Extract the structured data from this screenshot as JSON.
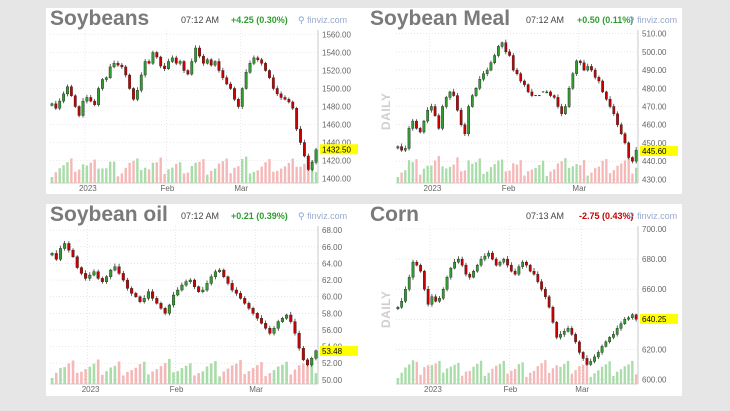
{
  "colors": {
    "up": "#2f9e2f",
    "down": "#c80000",
    "vol_up": "#a8dca8",
    "vol_down": "#f5b8b8",
    "grid": "#d8d8d8",
    "axis": "#666666",
    "last_bg": "#ffff00"
  },
  "watermark": "DAILY",
  "source_label": "finviz.com",
  "icon": "magnifier-icon",
  "chart_data": [
    {
      "type": "candlestick",
      "title": "Soybeans",
      "time": "07:12 AM",
      "change": "+4.25 (0.30%)",
      "change_dir": "up",
      "last": 1432.5,
      "last_label": "1432.50",
      "ylim": [
        1395,
        1565
      ],
      "ticks": [
        1400,
        1420,
        1440,
        1460,
        1480,
        1500,
        1520,
        1540,
        1560
      ],
      "tick_labels": [
        "1400.00",
        "1420.00",
        "1440.00",
        "1460.00",
        "1480.00",
        "1500.00",
        "1520.00",
        "1540.00",
        "1560.00"
      ],
      "x_labels": [
        {
          "label": "2023",
          "i": 9
        },
        {
          "label": "Feb",
          "i": 30
        },
        {
          "label": "Mar",
          "i": 49
        }
      ],
      "closes": [
        1483,
        1478,
        1486,
        1494,
        1502,
        1492,
        1480,
        1470,
        1486,
        1490,
        1486,
        1482,
        1500,
        1510,
        1512,
        1524,
        1528,
        1526,
        1524,
        1515,
        1500,
        1488,
        1498,
        1515,
        1530,
        1528,
        1540,
        1535,
        1525,
        1522,
        1530,
        1534,
        1528,
        1530,
        1520,
        1516,
        1530,
        1545,
        1536,
        1528,
        1532,
        1526,
        1530,
        1520,
        1512,
        1505,
        1500,
        1488,
        1480,
        1500,
        1518,
        1528,
        1534,
        1532,
        1528,
        1520,
        1512,
        1500,
        1494,
        1490,
        1488,
        1485,
        1478,
        1455,
        1440,
        1425,
        1410,
        1418,
        1432
      ]
    },
    {
      "type": "candlestick",
      "title": "Soybean Meal",
      "time": "07:12 AM",
      "change": "+0.50 (0.11%)",
      "change_dir": "up",
      "last": 445.6,
      "last_label": "445.60",
      "ylim": [
        428,
        512
      ],
      "ticks": [
        430,
        440,
        450,
        460,
        470,
        480,
        490,
        500,
        510
      ],
      "tick_labels": [
        "430.00",
        "440.00",
        "450.00",
        "460.00",
        "470.00",
        "480.00",
        "490.00",
        "500.00",
        "510.00"
      ],
      "x_labels": [
        {
          "label": "2023",
          "i": 9
        },
        {
          "label": "Feb",
          "i": 30
        },
        {
          "label": "Mar",
          "i": 49
        }
      ],
      "gaps": [
        37,
        38,
        39
      ],
      "closes": [
        448,
        446,
        447,
        458,
        462,
        458,
        456,
        462,
        468,
        470,
        465,
        458,
        470,
        475,
        478,
        476,
        468,
        460,
        455,
        470,
        476,
        480,
        485,
        488,
        490,
        494,
        498,
        503,
        505,
        500,
        498,
        490,
        488,
        484,
        482,
        478,
        476,
        476,
        476,
        478,
        478,
        476,
        475,
        470,
        466,
        470,
        480,
        488,
        495,
        494,
        490,
        492,
        490,
        486,
        484,
        478,
        474,
        470,
        466,
        460,
        455,
        450,
        442,
        440,
        446
      ]
    },
    {
      "type": "candlestick",
      "title": "Soybean oil",
      "time": "07:12 AM",
      "change": "+0.21 (0.39%)",
      "change_dir": "up",
      "last": 53.48,
      "last_label": "53.48",
      "ylim": [
        49.5,
        68.5
      ],
      "ticks": [
        50,
        52,
        54,
        56,
        58,
        60,
        62,
        64,
        66,
        68
      ],
      "tick_labels": [
        "50.00",
        "52.00",
        "54.00",
        "56.00",
        "58.00",
        "60.00",
        "62.00",
        "64.00",
        "66.00",
        "68.00"
      ],
      "x_labels": [
        {
          "label": "2023",
          "i": 9
        },
        {
          "label": "Feb",
          "i": 30
        },
        {
          "label": "Mar",
          "i": 49
        }
      ],
      "closes": [
        65.2,
        64.5,
        65.8,
        66.4,
        65.6,
        64.8,
        63.5,
        62.8,
        62.2,
        62.6,
        63.0,
        62.2,
        61.8,
        62.4,
        63.2,
        63.6,
        62.8,
        62.0,
        61.0,
        60.4,
        60.0,
        59.4,
        59.8,
        60.6,
        59.8,
        59.2,
        58.6,
        58.0,
        59.0,
        60.2,
        60.8,
        61.4,
        61.8,
        62.0,
        61.2,
        60.6,
        60.8,
        61.6,
        62.4,
        63.0,
        63.2,
        62.4,
        61.6,
        60.8,
        60.4,
        59.8,
        59.2,
        58.6,
        58.0,
        57.4,
        56.8,
        56.2,
        55.6,
        56.2,
        57.0,
        57.4,
        57.8,
        57.0,
        55.6,
        53.8,
        52.4,
        51.8,
        52.6,
        53.5
      ]
    },
    {
      "type": "candlestick",
      "title": "Corn",
      "time": "07:13 AM",
      "change": "-2.75 (0.43%)",
      "change_dir": "down",
      "last": 640.25,
      "last_label": "640.25",
      "ylim": [
        597,
        702
      ],
      "ticks": [
        600,
        620,
        640,
        660,
        680,
        700
      ],
      "tick_labels": [
        "600.00",
        "620.00",
        "640.00",
        "660.00",
        "680.00",
        "700.00"
      ],
      "x_labels": [
        {
          "label": "2023",
          "i": 9
        },
        {
          "label": "Feb",
          "i": 30
        },
        {
          "label": "Mar",
          "i": 49
        }
      ],
      "closes": [
        648,
        652,
        660,
        668,
        678,
        676,
        672,
        660,
        650,
        655,
        652,
        654,
        660,
        668,
        674,
        678,
        680,
        676,
        670,
        668,
        672,
        676,
        680,
        682,
        684,
        680,
        676,
        678,
        680,
        676,
        672,
        670,
        675,
        678,
        676,
        672,
        670,
        665,
        660,
        655,
        648,
        638,
        628,
        630,
        632,
        634,
        630,
        625,
        618,
        614,
        610,
        612,
        615,
        618,
        622,
        625,
        628,
        630,
        634,
        637,
        640,
        641,
        643,
        640
      ]
    }
  ]
}
